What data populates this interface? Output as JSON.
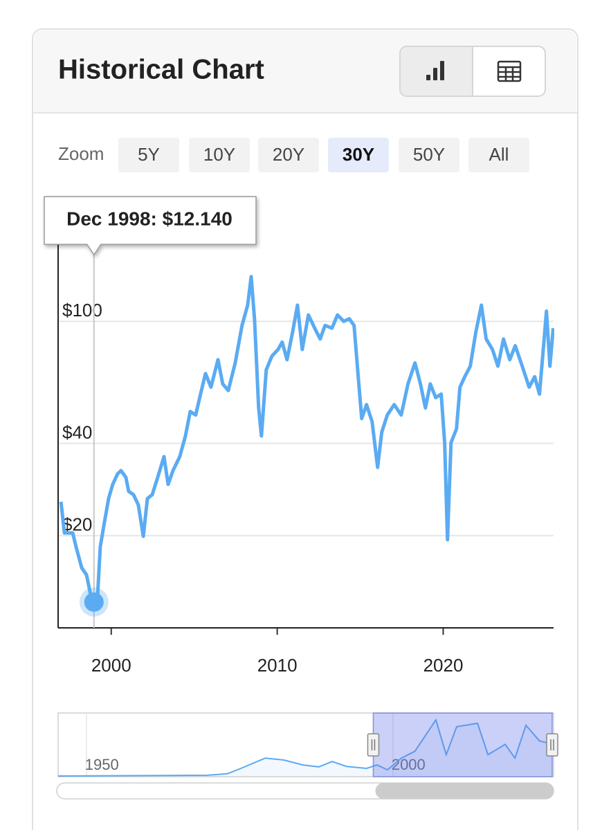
{
  "chart_data": {
    "type": "line",
    "title": "Historical Chart",
    "zoom_label": "Zoom",
    "zoom_options": [
      "5Y",
      "10Y",
      "20Y",
      "30Y",
      "50Y",
      "All"
    ],
    "zoom_selected": "30Y",
    "color": "#5aabf2",
    "log_scale": true,
    "grid": true,
    "xlim": [
      1996.8,
      2026.65
    ],
    "xticks": [
      2000,
      2010,
      2020
    ],
    "ylim": [
      10,
      200
    ],
    "yticks": [
      {
        "value": 20,
        "label": "$20"
      },
      {
        "value": 40,
        "label": "$40"
      },
      {
        "value": 100,
        "label": "$100"
      }
    ],
    "x": [
      1996.97,
      1997.18,
      1997.68,
      1997.88,
      1998.22,
      1998.51,
      1998.76,
      1998.96,
      1999.18,
      1999.34,
      1999.55,
      1999.84,
      2000.09,
      2000.38,
      2000.59,
      2000.88,
      2001.05,
      2001.34,
      2001.63,
      2001.93,
      2002.18,
      2002.47,
      2002.8,
      2003.18,
      2003.43,
      2003.72,
      2004.13,
      2004.47,
      2004.76,
      2005.09,
      2005.38,
      2005.68,
      2006.01,
      2006.43,
      2006.72,
      2007.05,
      2007.47,
      2007.88,
      2008.22,
      2008.43,
      2008.63,
      2008.88,
      2009.05,
      2009.34,
      2009.68,
      2010.05,
      2010.3,
      2010.59,
      2010.93,
      2011.22,
      2011.51,
      2011.88,
      2012.26,
      2012.59,
      2012.88,
      2013.3,
      2013.63,
      2014.01,
      2014.34,
      2014.63,
      2014.88,
      2015.09,
      2015.38,
      2015.72,
      2016.05,
      2016.3,
      2016.63,
      2017.05,
      2017.47,
      2017.88,
      2018.3,
      2018.63,
      2018.93,
      2019.22,
      2019.55,
      2019.88,
      2020.09,
      2020.26,
      2020.47,
      2020.8,
      2021.01,
      2021.3,
      2021.63,
      2021.97,
      2022.3,
      2022.59,
      2022.97,
      2023.3,
      2023.63,
      2024.01,
      2024.34,
      2024.76,
      2025.18,
      2025.51,
      2025.8,
      2026.05,
      2026.22,
      2026.43,
      2026.63
    ],
    "values": [
      25.8,
      20.4,
      20.4,
      18.4,
      15.7,
      14.9,
      12.8,
      12.14,
      12.8,
      18.4,
      21.5,
      26.4,
      29.4,
      31.8,
      32.6,
      31.0,
      27.9,
      27.2,
      25.2,
      19.9,
      26.4,
      27.2,
      31.0,
      36.2,
      29.4,
      32.6,
      36.2,
      42.3,
      50.8,
      49.5,
      57.9,
      67.6,
      61.0,
      75.0,
      62.5,
      59.5,
      73.2,
      97.1,
      113,
      140,
      102,
      52.2,
      42.3,
      69.5,
      77,
      81,
      85.6,
      75,
      92.4,
      113,
      81,
      105,
      95,
      87.6,
      97,
      95,
      105,
      100,
      102,
      97,
      66,
      48.2,
      53.5,
      47,
      33.4,
      43.5,
      49.5,
      53.5,
      49.5,
      62.5,
      73.2,
      62.5,
      52.2,
      62.5,
      56.4,
      57.9,
      40.2,
      19.4,
      40.2,
      44.6,
      61.0,
      66,
      71.4,
      92.4,
      113,
      87.6,
      81,
      71.4,
      87.6,
      75,
      83.3,
      71.4,
      61,
      66,
      57.9,
      83.3,
      108,
      71.4,
      95
    ],
    "tooltip": {
      "label": "Dec 1998: $12.140",
      "x": 1998.96,
      "value": 12.14
    },
    "navigator": {
      "xlim": [
        1945.4,
        2026.2
      ],
      "ylim": [
        0,
        130
      ],
      "xticks": [
        1950,
        2000
      ],
      "x": [
        1945.4,
        1969.8,
        1973,
        1975.2,
        1979.2,
        1982.2,
        1985.3,
        1987.9,
        1990.1,
        1992.4,
        1995.7,
        1997.4,
        1999.1,
        2001.4,
        2003.6,
        2007,
        2008.7,
        2010.4,
        2013.8,
        2015.5,
        2018.3,
        2019.9,
        2021.7,
        2023.9,
        2026.2
      ],
      "values": [
        1.4,
        3,
        6,
        17,
        38,
        34,
        24,
        20,
        31,
        21,
        17,
        24,
        14,
        38,
        52,
        116,
        45,
        102,
        109,
        45,
        66,
        38,
        105,
        73,
        66
      ]
    }
  }
}
